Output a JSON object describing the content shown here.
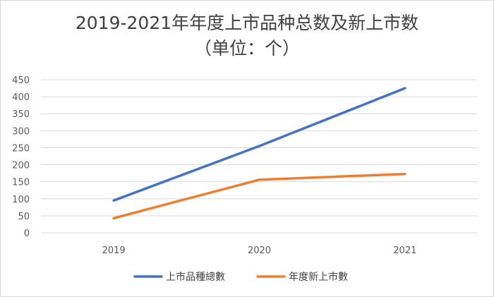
{
  "chart_data": {
    "type": "line",
    "title": "2019-2021年年度上市品种总数及新上市数",
    "subtitle": "（单位：个）",
    "categories": [
      "2019",
      "2020",
      "2021"
    ],
    "series": [
      {
        "name": "上市品種總數",
        "values": [
          95,
          255,
          425
        ],
        "color": "#4472c4"
      },
      {
        "name": "年度新上市數",
        "values": [
          43,
          156,
          173
        ],
        "color": "#ed7d31"
      }
    ],
    "ylim": [
      0,
      450
    ],
    "yticks": [
      0,
      50,
      100,
      150,
      200,
      250,
      300,
      350,
      400,
      450
    ],
    "grid": true,
    "legend": "bottom"
  }
}
